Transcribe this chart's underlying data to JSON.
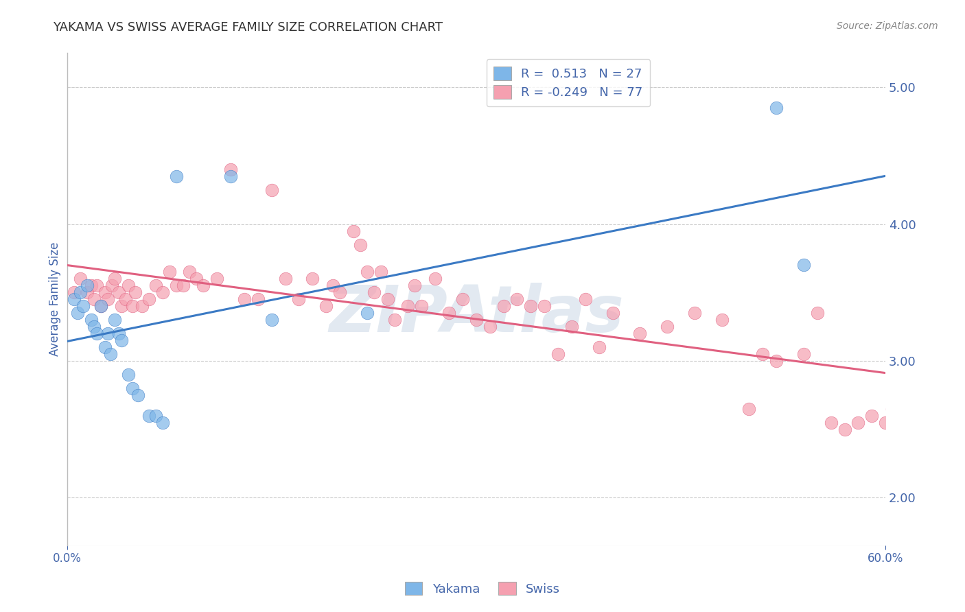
{
  "title": "YAKAMA VS SWISS AVERAGE FAMILY SIZE CORRELATION CHART",
  "source_text": "Source: ZipAtlas.com",
  "ylabel": "Average Family Size",
  "xmin": 0.0,
  "xmax": 0.6,
  "ymin": 1.65,
  "ymax": 5.25,
  "yticks": [
    2.0,
    3.0,
    4.0,
    5.0
  ],
  "yakama_color": "#7EB6E8",
  "swiss_color": "#F5A0B0",
  "yakama_line_color": "#3B7AC4",
  "swiss_line_color": "#E06080",
  "R_yakama": 0.513,
  "N_yakama": 27,
  "R_swiss": -0.249,
  "N_swiss": 77,
  "legend_label_yakama": "Yakama",
  "legend_label_swiss": "Swiss",
  "watermark": "ZIPAtlas",
  "watermark_color": "#c0d0e0",
  "background_color": "#ffffff",
  "title_color": "#333333",
  "axis_label_color": "#4466aa",
  "tick_color": "#4466aa",
  "grid_color": "#cccccc",
  "title_fontsize": 13,
  "yakama_x": [
    0.005,
    0.008,
    0.01,
    0.012,
    0.015,
    0.018,
    0.02,
    0.022,
    0.025,
    0.028,
    0.03,
    0.032,
    0.035,
    0.038,
    0.04,
    0.045,
    0.048,
    0.052,
    0.06,
    0.065,
    0.07,
    0.08,
    0.12,
    0.15,
    0.22,
    0.52,
    0.54
  ],
  "yakama_y": [
    3.45,
    3.35,
    3.5,
    3.4,
    3.55,
    3.3,
    3.25,
    3.2,
    3.4,
    3.1,
    3.2,
    3.05,
    3.3,
    3.2,
    3.15,
    2.9,
    2.8,
    2.75,
    2.6,
    2.6,
    2.55,
    4.35,
    4.35,
    3.3,
    3.35,
    4.85,
    3.7
  ],
  "swiss_x": [
    0.005,
    0.01,
    0.015,
    0.018,
    0.02,
    0.022,
    0.025,
    0.028,
    0.03,
    0.033,
    0.035,
    0.038,
    0.04,
    0.043,
    0.045,
    0.048,
    0.05,
    0.055,
    0.06,
    0.065,
    0.07,
    0.075,
    0.08,
    0.085,
    0.09,
    0.095,
    0.1,
    0.11,
    0.12,
    0.13,
    0.14,
    0.15,
    0.16,
    0.17,
    0.18,
    0.19,
    0.195,
    0.2,
    0.21,
    0.215,
    0.22,
    0.225,
    0.23,
    0.235,
    0.24,
    0.25,
    0.255,
    0.26,
    0.27,
    0.28,
    0.29,
    0.3,
    0.31,
    0.32,
    0.33,
    0.34,
    0.35,
    0.36,
    0.37,
    0.38,
    0.39,
    0.4,
    0.42,
    0.44,
    0.46,
    0.48,
    0.5,
    0.51,
    0.52,
    0.54,
    0.55,
    0.56,
    0.57,
    0.58,
    0.59,
    0.6,
    0.605
  ],
  "swiss_y": [
    3.5,
    3.6,
    3.5,
    3.55,
    3.45,
    3.55,
    3.4,
    3.5,
    3.45,
    3.55,
    3.6,
    3.5,
    3.4,
    3.45,
    3.55,
    3.4,
    3.5,
    3.4,
    3.45,
    3.55,
    3.5,
    3.65,
    3.55,
    3.55,
    3.65,
    3.6,
    3.55,
    3.6,
    4.4,
    3.45,
    3.45,
    4.25,
    3.6,
    3.45,
    3.6,
    3.4,
    3.55,
    3.5,
    3.95,
    3.85,
    3.65,
    3.5,
    3.65,
    3.45,
    3.3,
    3.4,
    3.55,
    3.4,
    3.6,
    3.35,
    3.45,
    3.3,
    3.25,
    3.4,
    3.45,
    3.4,
    3.4,
    3.05,
    3.25,
    3.45,
    3.1,
    3.35,
    3.2,
    3.25,
    3.35,
    3.3,
    2.65,
    3.05,
    3.0,
    3.05,
    3.35,
    2.55,
    2.5,
    2.55,
    2.6,
    2.55,
    2.65
  ]
}
